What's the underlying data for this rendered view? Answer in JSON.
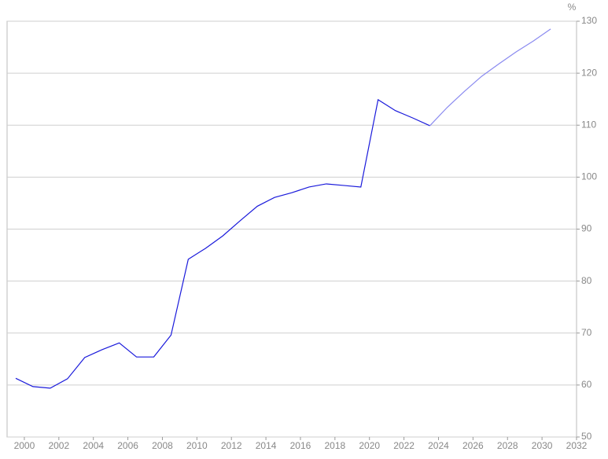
{
  "chart_data": {
    "type": "line",
    "y_unit": "%",
    "x": [
      1999.5,
      2000.5,
      2001.5,
      2002.5,
      2003.5,
      2004.5,
      2005.5,
      2006.5,
      2007.5,
      2008.5,
      2009.5,
      2010.5,
      2011.5,
      2012.5,
      2013.5,
      2014.5,
      2015.5,
      2016.5,
      2017.5,
      2018.5,
      2019.5,
      2020.5,
      2021.5,
      2022.5,
      2023.5,
      2024.5,
      2025.5,
      2026.5,
      2027.5,
      2028.5,
      2029.5,
      2030.5
    ],
    "series": [
      {
        "color": "#1a1adb",
        "values": [
          61.3,
          59.7,
          59.4,
          61.2,
          65.3,
          66.8,
          68.1,
          65.4,
          65.4,
          69.6,
          84.2,
          86.3,
          88.7,
          91.6,
          94.4,
          96.1,
          97.0,
          98.1,
          98.7,
          98.4,
          98.1,
          114.9,
          112.8,
          111.4,
          109.9,
          null,
          null,
          null,
          null,
          null,
          null,
          null
        ]
      },
      {
        "color": "#8a8af0",
        "values": [
          null,
          null,
          null,
          null,
          null,
          null,
          null,
          null,
          null,
          null,
          null,
          null,
          null,
          null,
          null,
          null,
          null,
          null,
          null,
          null,
          null,
          null,
          null,
          null,
          109.9,
          113.4,
          116.5,
          119.4,
          121.8,
          124.1,
          126.2,
          128.5
        ]
      }
    ],
    "xlim": [
      1999,
      2032
    ],
    "xticks": [
      2000,
      2002,
      2004,
      2006,
      2008,
      2010,
      2012,
      2014,
      2016,
      2018,
      2020,
      2022,
      2024,
      2026,
      2028,
      2030,
      2032
    ],
    "ylim": [
      50,
      130
    ],
    "yticks": [
      50,
      60,
      70,
      80,
      90,
      100,
      110,
      120,
      130
    ],
    "grid": true
  }
}
